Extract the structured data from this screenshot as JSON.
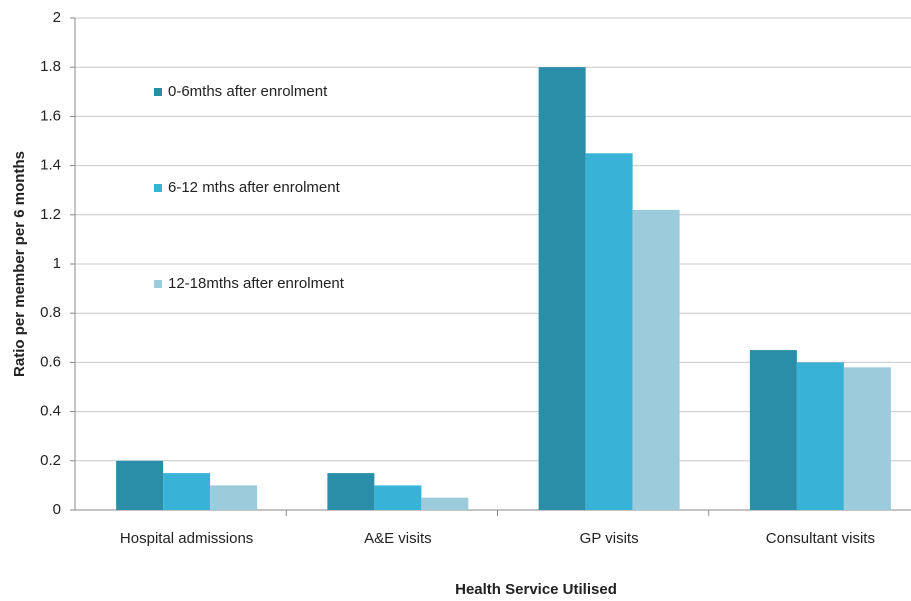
{
  "chart_data": {
    "type": "bar",
    "xlabel": "Health Service Utilised",
    "ylabel": "Ratio per member per 6 months",
    "categories": [
      "Hospital admissions",
      "A&E visits",
      "GP visits",
      "Consultant visits"
    ],
    "series": [
      {
        "name": "0-6mths after enrolment",
        "color": "#2a8ea8",
        "values": [
          0.2,
          0.15,
          1.8,
          0.65
        ]
      },
      {
        "name": "6-12 mths after enrolment",
        "color": "#38b2d6",
        "values": [
          0.15,
          0.1,
          1.45,
          0.6
        ]
      },
      {
        "name": "12-18mths after enrolment",
        "color": "#9ccbdc",
        "values": [
          0.1,
          0.05,
          1.22,
          0.58
        ]
      }
    ],
    "ylim": [
      0,
      2
    ],
    "yticks": [
      0,
      0.2,
      0.4,
      0.6,
      0.8,
      1,
      1.2,
      1.4,
      1.6,
      1.8,
      2
    ],
    "grid": true,
    "legend": "left"
  }
}
